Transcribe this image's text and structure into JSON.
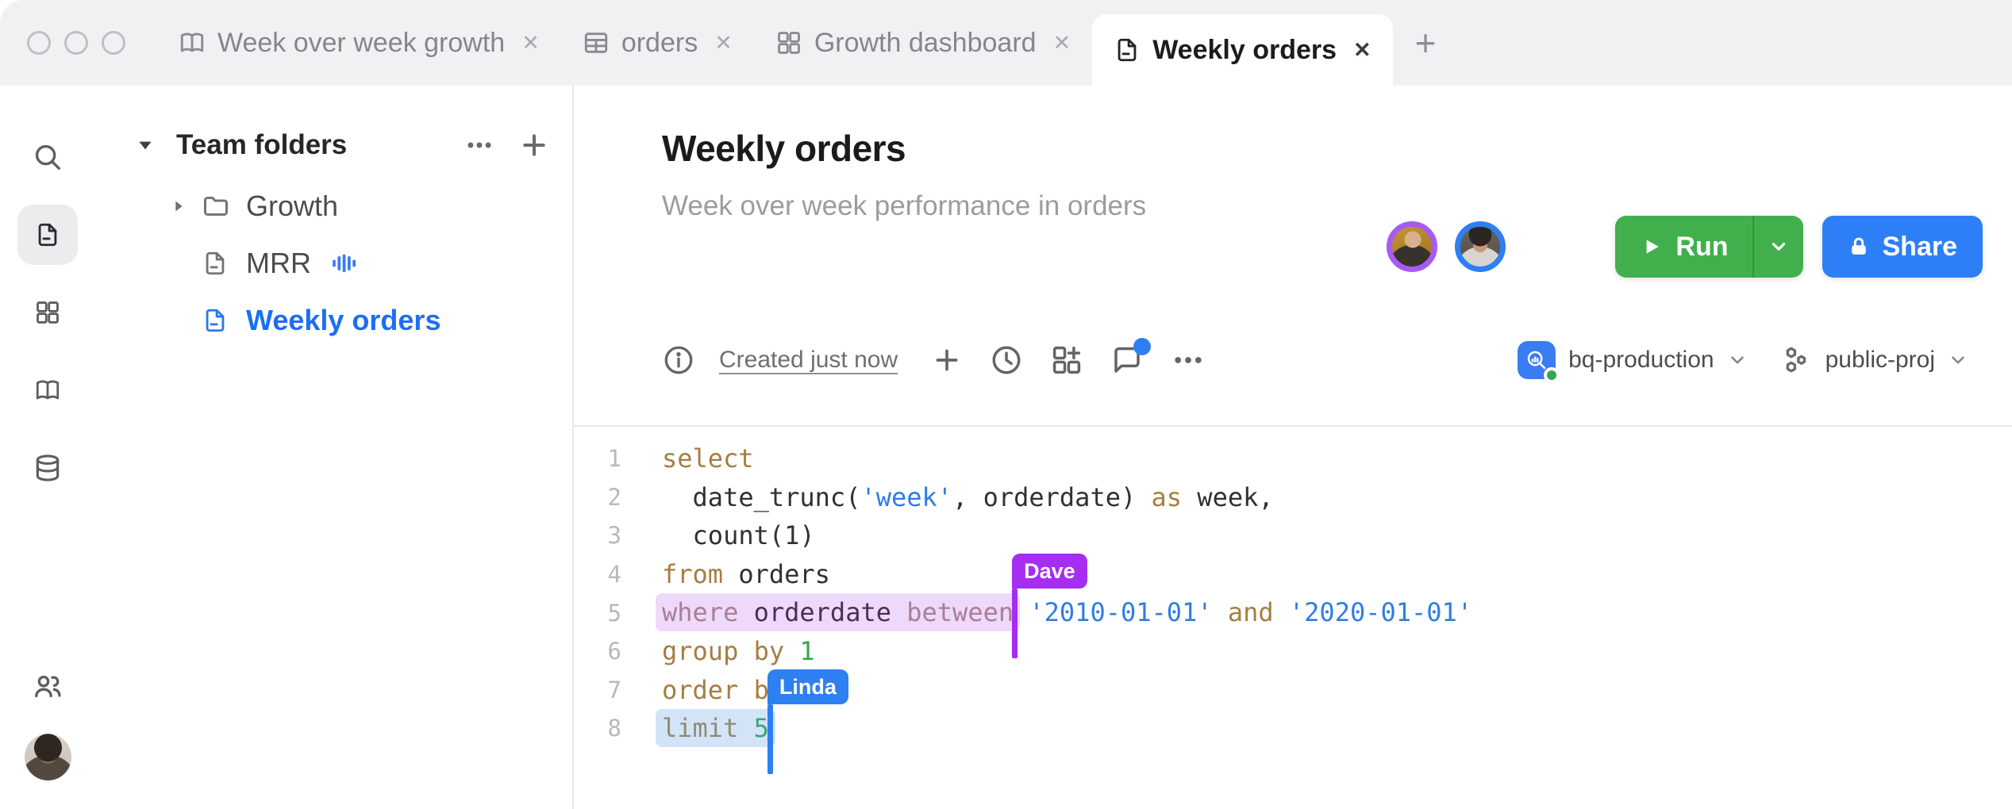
{
  "window": {
    "traffic_light_count": 3
  },
  "tab_bar": {
    "tabs": [
      {
        "label": "Week over week growth",
        "icon": "book-icon",
        "active": false
      },
      {
        "label": "orders",
        "icon": "table-icon",
        "active": false
      },
      {
        "label": "Growth dashboard",
        "icon": "dashboard-icon",
        "active": false
      },
      {
        "label": "Weekly orders",
        "icon": "document-icon",
        "active": true
      }
    ],
    "close_glyph": "✕",
    "new_tab_glyph": "+"
  },
  "rail": {
    "items": [
      {
        "icon": "search-icon",
        "active": false
      },
      {
        "icon": "document-icon",
        "active": true
      },
      {
        "icon": "dashboard-icon",
        "active": false
      },
      {
        "icon": "book-icon",
        "active": false
      },
      {
        "icon": "database-icon",
        "active": false
      }
    ],
    "bottom_items": [
      {
        "icon": "people-icon"
      }
    ]
  },
  "sidebar": {
    "header": {
      "label": "Team folders",
      "more_glyph": "more",
      "add_glyph": "plus"
    },
    "items": [
      {
        "label": "Growth",
        "icon": "folder-icon",
        "expandable": true,
        "selected": false,
        "trailing_icon": null
      },
      {
        "label": "MRR",
        "icon": "document-icon",
        "expandable": false,
        "selected": false,
        "trailing_icon": "bars-icon"
      },
      {
        "label": "Weekly orders",
        "icon": "document-icon",
        "expandable": false,
        "selected": true,
        "trailing_icon": null
      }
    ]
  },
  "main": {
    "title": "Weekly orders",
    "subtitle": "Week over week performance in orders",
    "collaborators": [
      {
        "ring_color": "#a75bf2"
      },
      {
        "ring_color": "#2e7ff2"
      },
      {
        "ring_color": null
      }
    ],
    "run_button": {
      "label": "Run",
      "color": "#41b04c"
    },
    "share_button": {
      "label": "Share",
      "color": "#2e7ff7"
    },
    "toolbar": {
      "status_text": "Created just now",
      "has_notification_dot": true,
      "notification_dot_color": "#2e7ff2",
      "connection": {
        "label": "bq-production",
        "icon_color": "#3a7cf2",
        "status_color": "#34a84d"
      },
      "project": {
        "label": "public-proj"
      }
    }
  },
  "editor": {
    "palette": {
      "keyword": "#a57e41",
      "ident": "#303135",
      "string": "#2f7de6",
      "number": "#2faa4f",
      "number_teal": "#38a678",
      "keyword_sel_purple": "#a87f95",
      "ident_sel_purple": "#463257",
      "keyword_sel_blue": "#8f8a70",
      "sel_purple_bg": "#efd9fa",
      "sel_blue_bg": "#d3e4f9",
      "cursor_dave": "#a62df2",
      "cursor_linda": "#2e7ff2"
    },
    "lines": [
      {
        "num": "1",
        "pre": [
          {
            "t": "select",
            "s": "keyword"
          }
        ]
      },
      {
        "num": "2",
        "pre": [
          {
            "t": "  date_trunc(",
            "s": "ident"
          },
          {
            "t": "'week'",
            "s": "string"
          },
          {
            "t": ", orderdate) ",
            "s": "ident"
          },
          {
            "t": "as",
            "s": "keyword"
          },
          {
            "t": " week,",
            "s": "ident"
          }
        ]
      },
      {
        "num": "3",
        "pre": [
          {
            "t": "  count(1)",
            "s": "ident"
          }
        ]
      },
      {
        "num": "4",
        "pre": [
          {
            "t": "from",
            "s": "keyword"
          },
          {
            "t": " orders",
            "s": "ident"
          }
        ]
      },
      {
        "num": "5",
        "sel": {
          "bg": "sel_purple_bg",
          "tokens": [
            {
              "t": "where",
              "s": "keyword_sel_purple"
            },
            {
              "t": " ",
              "s": "ident"
            },
            {
              "t": "orderdate",
              "s": "ident_sel_purple"
            },
            {
              "t": " ",
              "s": "ident"
            },
            {
              "t": "between",
              "s": "keyword_sel_purple"
            }
          ]
        },
        "cursor": {
          "label": "Dave",
          "color": "cursor_dave"
        },
        "post": [
          {
            "t": " ",
            "s": "ident"
          },
          {
            "t": "'2010-01-01'",
            "s": "string"
          },
          {
            "t": " ",
            "s": "ident"
          },
          {
            "t": "and",
            "s": "keyword"
          },
          {
            "t": " ",
            "s": "ident"
          },
          {
            "t": "'2020-01-01'",
            "s": "string"
          }
        ]
      },
      {
        "num": "6",
        "pre": [
          {
            "t": "group by ",
            "s": "keyword"
          },
          {
            "t": "1",
            "s": "number"
          }
        ]
      },
      {
        "num": "7",
        "pre": [
          {
            "t": "order by",
            "s": "keyword"
          }
        ]
      },
      {
        "num": "8",
        "sel": {
          "bg": "sel_blue_bg",
          "tokens": [
            {
              "t": "limit",
              "s": "keyword_sel_blue"
            },
            {
              "t": " ",
              "s": "ident"
            },
            {
              "t": "5",
              "s": "number_teal"
            }
          ]
        },
        "cursor": {
          "label": "Linda",
          "color": "cursor_linda"
        }
      }
    ]
  }
}
